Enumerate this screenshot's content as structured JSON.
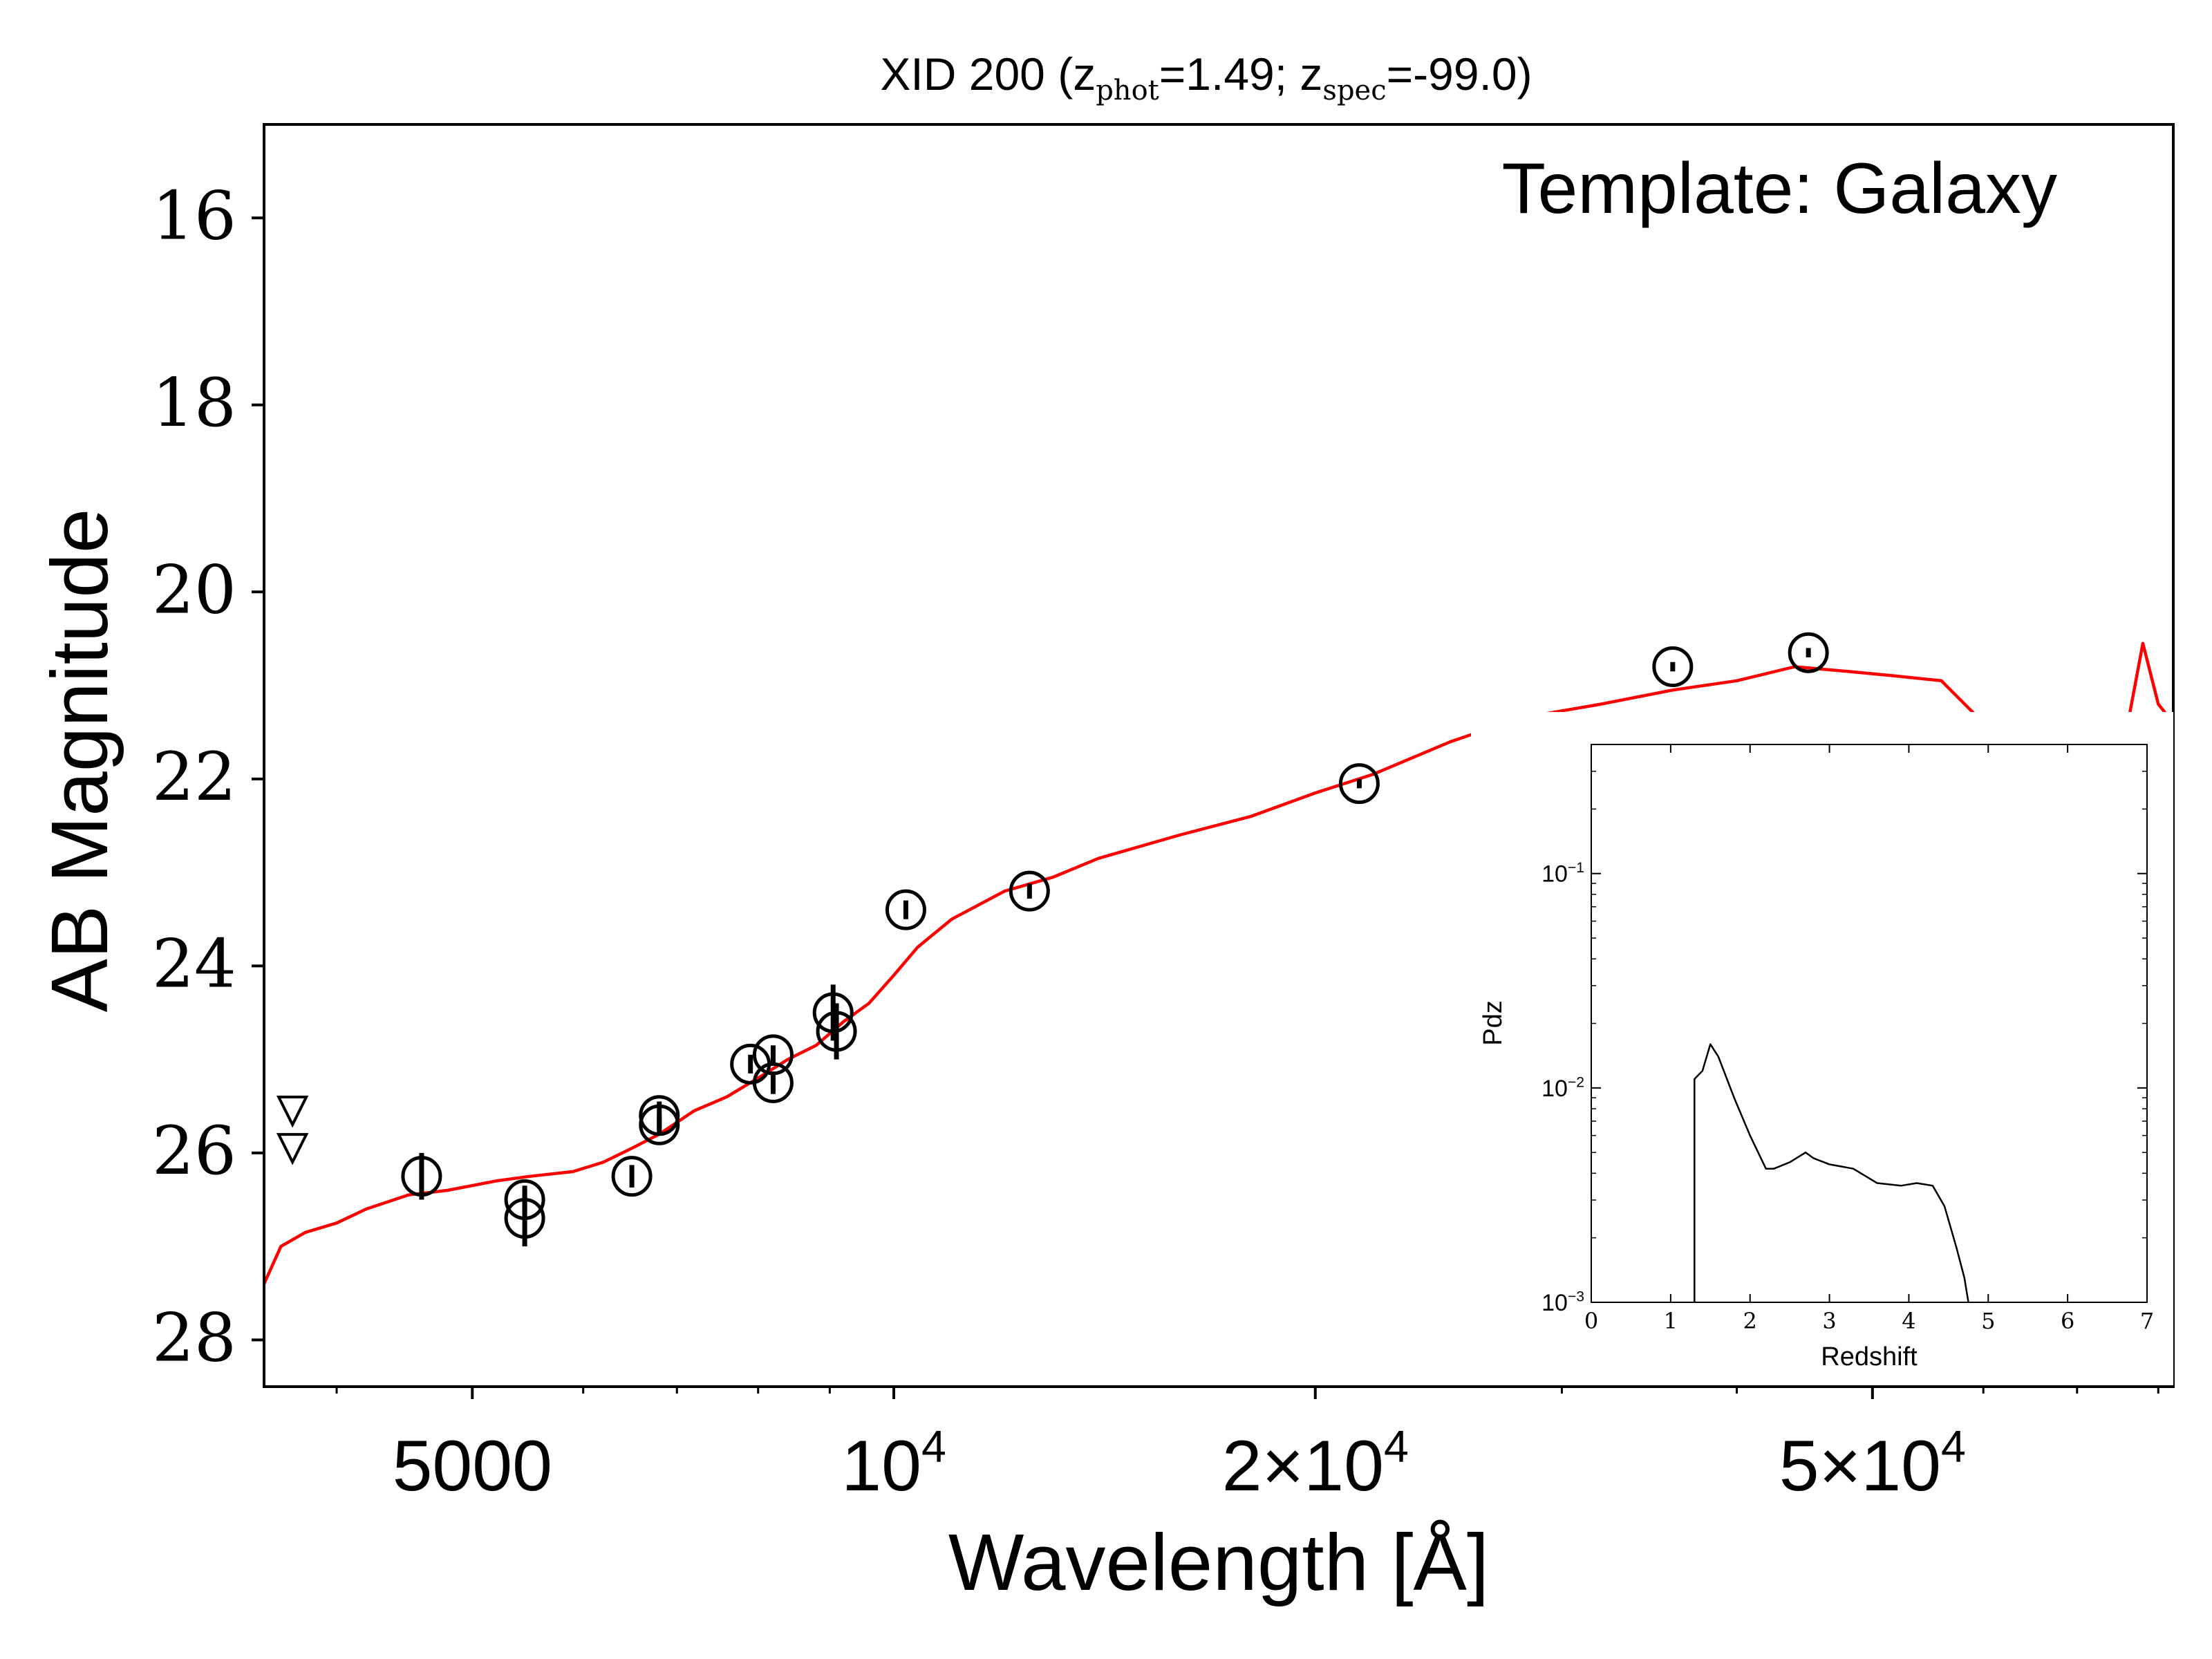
{
  "chart_data": [
    {
      "type": "scatter",
      "title_parts": {
        "object": "XID 200",
        "phot_sub": "phot",
        "phot_val": "=1.49;",
        "spec_sub": "spec",
        "spec_val": "=-99.0)"
      },
      "annotation": "Template: Galaxy",
      "xlabel": "Wavelength [Å]",
      "ylabel": "AB Magnitude",
      "xscale": "log",
      "xlim": [
        3550,
        82000
      ],
      "ylim": [
        28.5,
        15.0
      ],
      "yticks": [
        16,
        18,
        20,
        22,
        24,
        26,
        28
      ],
      "xticks": [
        {
          "value": 5000,
          "label": "5000"
        },
        {
          "value": 10000,
          "label": "10^4"
        },
        {
          "value": 20000,
          "label": "2×10^4"
        },
        {
          "value": 50000,
          "label": "5×10^4"
        }
      ],
      "series": [
        {
          "kind": "model_line",
          "color": "#ff0000",
          "x": [
            3550,
            3650,
            3800,
            4000,
            4200,
            4500,
            4800,
            5200,
            5500,
            5900,
            6200,
            6500,
            6800,
            7200,
            7600,
            8000,
            8400,
            8800,
            9200,
            9600,
            10000,
            10400,
            11000,
            12000,
            13000,
            14000,
            16000,
            18000,
            20000,
            22000,
            25000,
            28000,
            32000,
            36000,
            40000,
            44000,
            48000,
            52000,
            56000,
            60000,
            64000,
            70000,
            76000,
            78000,
            80000,
            82000
          ],
          "y": [
            27.4,
            27.0,
            26.85,
            26.75,
            26.6,
            26.45,
            26.4,
            26.3,
            26.25,
            26.2,
            26.1,
            25.95,
            25.8,
            25.55,
            25.4,
            25.2,
            25.0,
            24.85,
            24.6,
            24.4,
            24.1,
            23.8,
            23.5,
            23.2,
            23.05,
            22.85,
            22.6,
            22.4,
            22.15,
            21.95,
            21.6,
            21.35,
            21.2,
            21.05,
            20.95,
            20.8,
            20.85,
            20.9,
            20.95,
            21.4,
            21.45,
            21.45,
            21.45,
            20.55,
            21.2,
            21.4
          ]
        },
        {
          "kind": "photometry",
          "color": "#000000",
          "points": [
            {
              "x": 4600,
              "y": 26.25,
              "err": 0.25
            },
            {
              "x": 5450,
              "y": 26.5,
              "err": 0.15
            },
            {
              "x": 5450,
              "y": 26.7,
              "err": 0.3
            },
            {
              "x": 6500,
              "y": 26.25,
              "err": 0.12
            },
            {
              "x": 6800,
              "y": 25.6,
              "err": 0.15
            },
            {
              "x": 6800,
              "y": 25.7,
              "err": 0.1
            },
            {
              "x": 7900,
              "y": 25.05,
              "err": 0.1
            },
            {
              "x": 8200,
              "y": 24.95,
              "err": 0.1
            },
            {
              "x": 8200,
              "y": 25.25,
              "err": 0.12
            },
            {
              "x": 9100,
              "y": 24.7,
              "err": 0.3
            },
            {
              "x": 9050,
              "y": 24.5,
              "err": 0.3
            },
            {
              "x": 10200,
              "y": 23.4,
              "err": 0.1
            },
            {
              "x": 12500,
              "y": 23.2,
              "err": 0.08
            },
            {
              "x": 21500,
              "y": 22.05,
              "err": 0.05
            },
            {
              "x": 36000,
              "y": 20.8,
              "err": 0.05
            },
            {
              "x": 45000,
              "y": 20.65,
              "err": 0.05
            }
          ]
        },
        {
          "kind": "upper_limits",
          "points": [
            {
              "x": 3720,
              "y": 25.55
            },
            {
              "x": 3720,
              "y": 25.95
            }
          ]
        }
      ]
    },
    {
      "type": "line",
      "xlabel": "Redshift",
      "ylabel": "Pdz",
      "yscale": "log",
      "xlim": [
        0,
        7
      ],
      "ylim": [
        0.001,
        0.4
      ],
      "xticks": [
        "0",
        "1",
        "2",
        "3",
        "4",
        "5",
        "6",
        "7"
      ],
      "yticks": [
        {
          "value": 0.1,
          "exp": "−1"
        },
        {
          "value": 0.01,
          "exp": "−2"
        },
        {
          "value": 0.001,
          "exp": "−3"
        }
      ],
      "x": [
        1.3,
        1.3,
        1.4,
        1.5,
        1.6,
        1.8,
        2.0,
        2.2,
        2.3,
        2.5,
        2.7,
        2.8,
        3.0,
        3.3,
        3.6,
        3.9,
        4.1,
        4.3,
        4.45,
        4.6,
        4.7,
        4.75
      ],
      "y": [
        0.001,
        0.011,
        0.012,
        0.016,
        0.014,
        0.009,
        0.006,
        0.0042,
        0.0042,
        0.0045,
        0.005,
        0.0047,
        0.0044,
        0.0042,
        0.0036,
        0.0035,
        0.0036,
        0.0035,
        0.0028,
        0.0018,
        0.0013,
        0.001
      ]
    }
  ]
}
